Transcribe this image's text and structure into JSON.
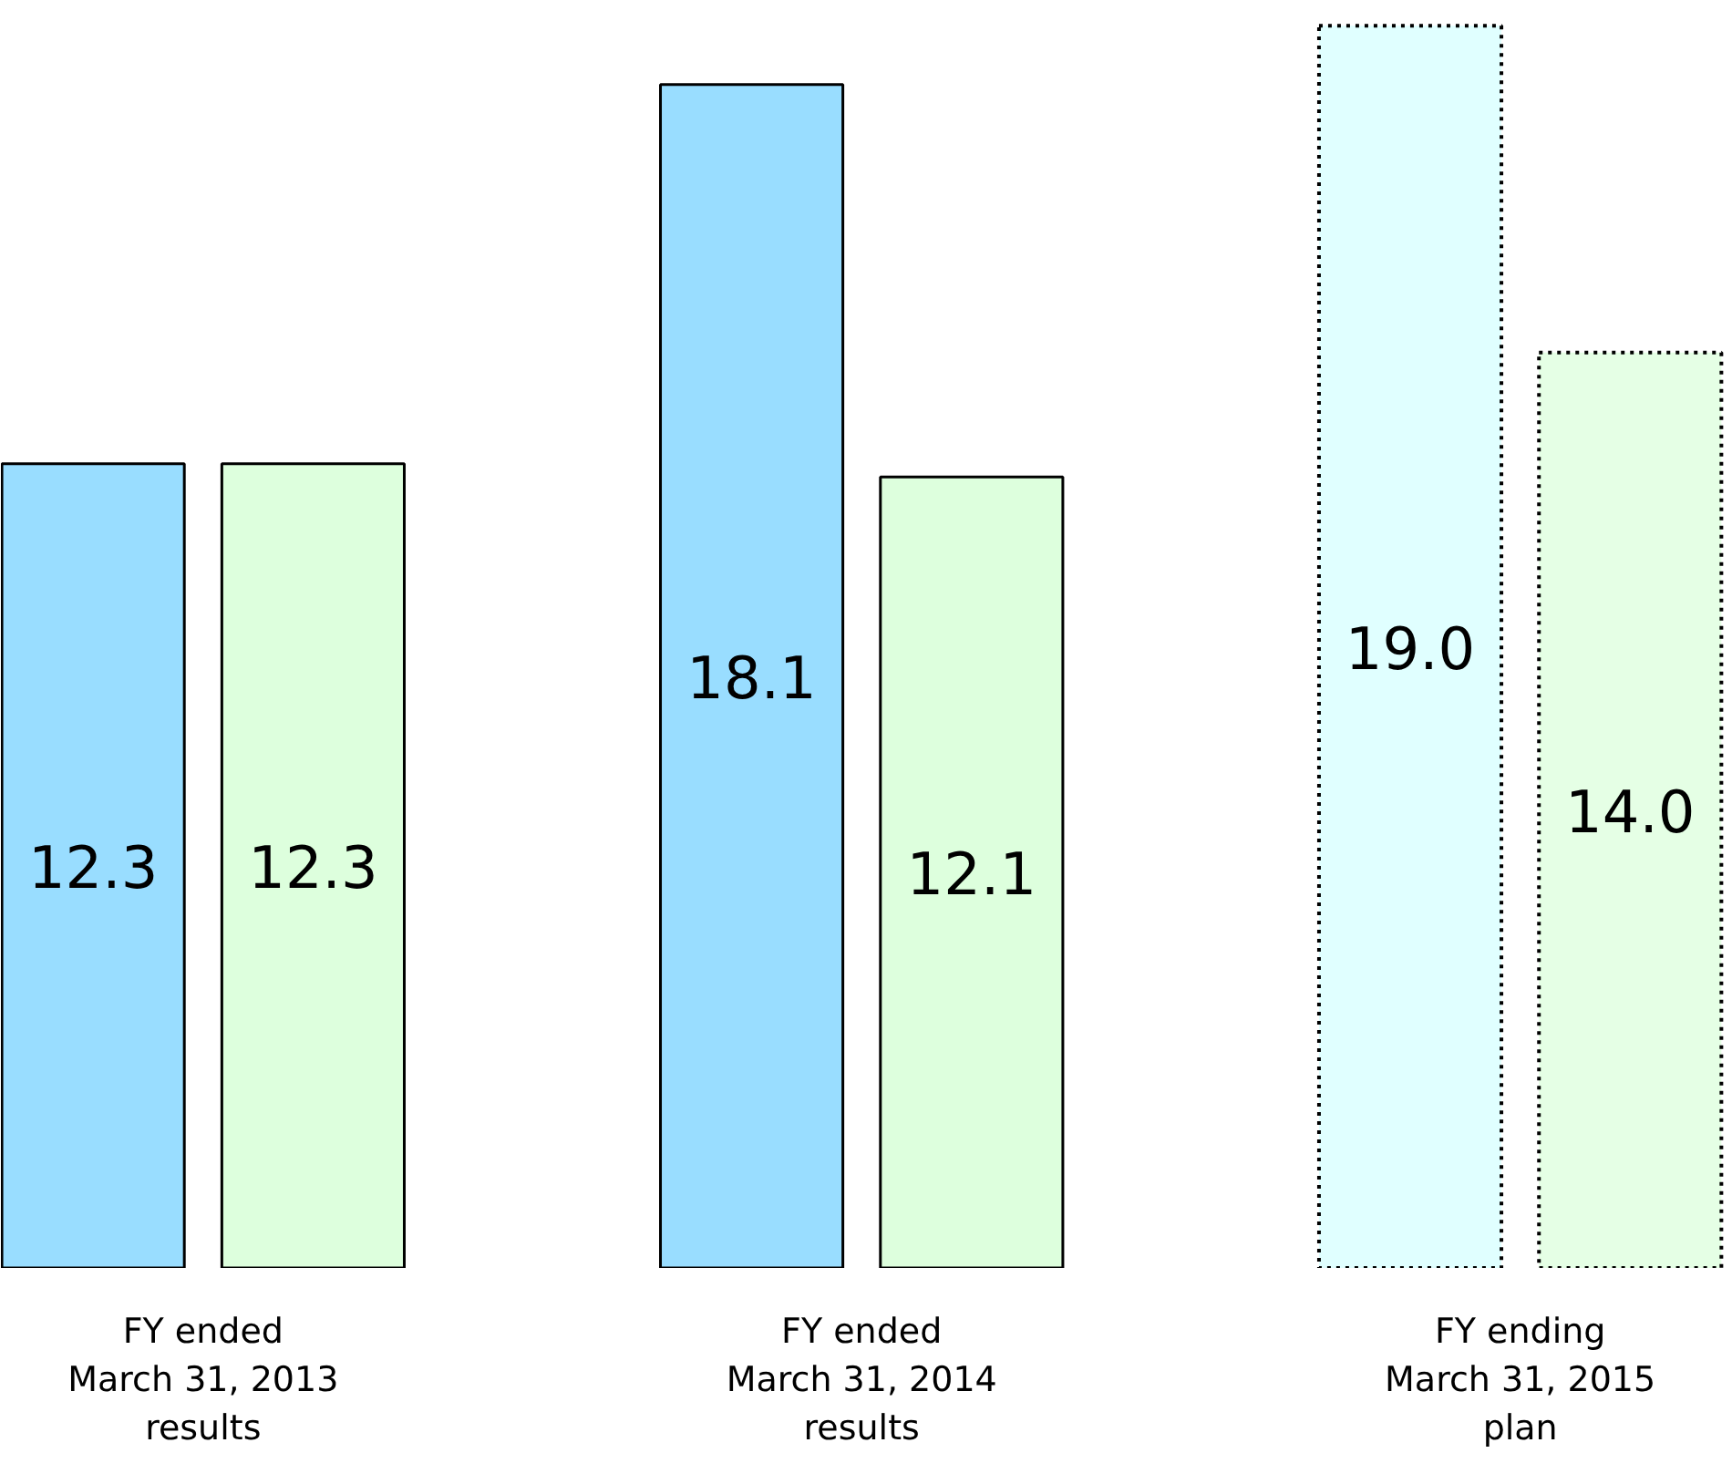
{
  "chart_data": {
    "type": "bar",
    "categories": [
      "FY ended\nMarch 31, 2013\nresults",
      "FY ended\nMarch 31, 2014\nresults",
      "FY ending\nMarch 31, 2015\nplan"
    ],
    "series": [
      {
        "color": "#99ddff",
        "values": [
          12.3,
          18.1,
          null
        ],
        "value_labels": [
          "12.3",
          "18.1",
          null
        ],
        "line_style": "solid"
      },
      {
        "color": "#ddffdd",
        "values": [
          12.3,
          12.1,
          null
        ],
        "value_labels": [
          "12.3",
          "12.1",
          null
        ],
        "line_style": "solid"
      },
      {
        "color": "#e0ffff",
        "values": [
          null,
          null,
          19.0
        ],
        "value_labels": [
          null,
          null,
          "19.0"
        ],
        "line_style": "dotted"
      },
      {
        "color": "#e5ffe5",
        "values": [
          null,
          null,
          14.0
        ],
        "value_labels": [
          null,
          null,
          "14.0"
        ],
        "line_style": "dotted"
      }
    ],
    "grid": false
  }
}
